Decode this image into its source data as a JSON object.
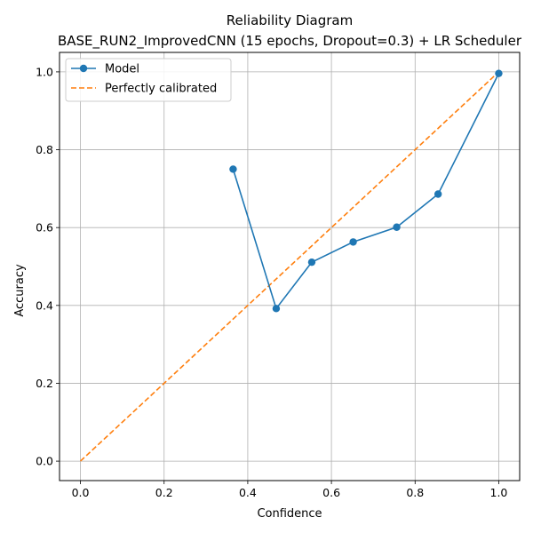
{
  "chart_data": {
    "type": "line",
    "title": "Reliability Diagram",
    "subtitle": "BASE_RUN2_ImprovedCNN (15 epochs, Dropout=0.3) + LR Scheduler",
    "xlabel": "Confidence",
    "ylabel": "Accuracy",
    "xlim": [
      -0.05,
      1.05
    ],
    "ylim": [
      -0.05,
      1.05
    ],
    "xticks": [
      "0.0",
      "0.2",
      "0.4",
      "0.6",
      "0.8",
      "1.0"
    ],
    "yticks": [
      "0.0",
      "0.2",
      "0.4",
      "0.6",
      "0.8",
      "1.0"
    ],
    "grid": true,
    "legend_position": "upper-left",
    "series": [
      {
        "name": "Model",
        "color": "#1f77b4",
        "style": "solid-with-circle-markers",
        "x": [
          0.365,
          0.468,
          0.553,
          0.652,
          0.756,
          0.855,
          1.0
        ],
        "y": [
          0.75,
          0.392,
          0.511,
          0.563,
          0.601,
          0.686,
          0.996
        ]
      },
      {
        "name": "Perfectly calibrated",
        "color": "#ff7f0e",
        "style": "dashed",
        "x": [
          0,
          1
        ],
        "y": [
          0,
          1
        ]
      }
    ]
  }
}
